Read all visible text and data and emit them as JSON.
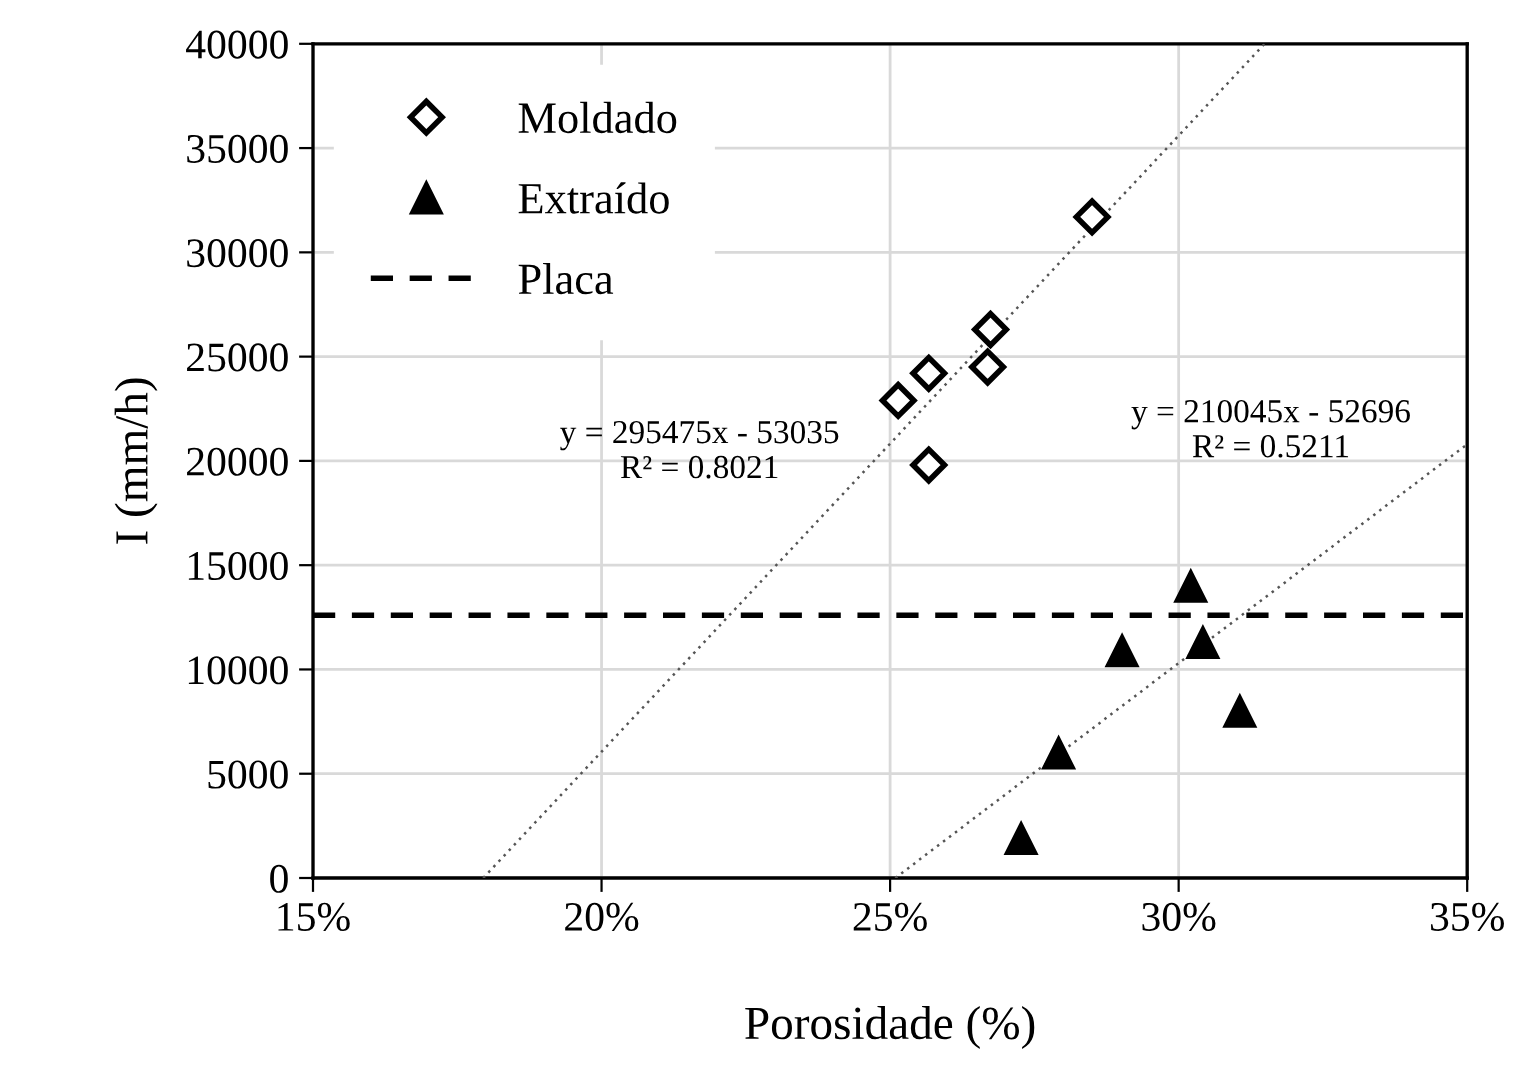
{
  "chart_data": {
    "type": "scatter",
    "xlabel": "Porosidade (%)",
    "ylabel": "I (mm/h)",
    "xlim": [
      15,
      35
    ],
    "xticks": [
      {
        "value": 15,
        "label": "15%"
      },
      {
        "value": 20,
        "label": "20%"
      },
      {
        "value": 25,
        "label": "25%"
      },
      {
        "value": 30,
        "label": "30%"
      },
      {
        "value": 35,
        "label": "35%"
      }
    ],
    "ylim": [
      0,
      40000
    ],
    "yticks": [
      0,
      5000,
      10000,
      15000,
      20000,
      25000,
      30000,
      35000,
      40000
    ],
    "grid": true,
    "legend": "top left",
    "series": [
      {
        "name": "Moldado",
        "marker": "diamond",
        "color": "#ffffff",
        "x": [
          25.14,
          25.67,
          25.67,
          26.69,
          26.74,
          28.5
        ],
        "values": [
          22900,
          24200,
          19800,
          24500,
          26300,
          31700
        ]
      },
      {
        "name": "Extraído",
        "marker": "triangle",
        "color": "#000000",
        "x": [
          27.27,
          27.92,
          29.02,
          30.21,
          30.42,
          31.06
        ],
        "values": [
          1900,
          6000,
          10900,
          14000,
          11300,
          8000
        ]
      },
      {
        "type": "line",
        "line_style": "dotted",
        "color": "#555555",
        "x": [
          17.95,
          31.49
        ],
        "values": [
          0,
          40000
        ]
      },
      {
        "type": "line",
        "line_style": "dotted",
        "color": "#555555",
        "x": [
          25.09,
          35
        ],
        "values": [
          0,
          20800
        ]
      }
    ],
    "ref_lines": [
      {
        "axis": "y",
        "value": 12600,
        "label": "Placa",
        "color": "#000000",
        "line_style": "dashed"
      }
    ],
    "annotations": [
      "y = 295475x - 53035\nR² = 0.8021",
      "y = 210045x - 52696\nR² = 0.5211"
    ]
  }
}
